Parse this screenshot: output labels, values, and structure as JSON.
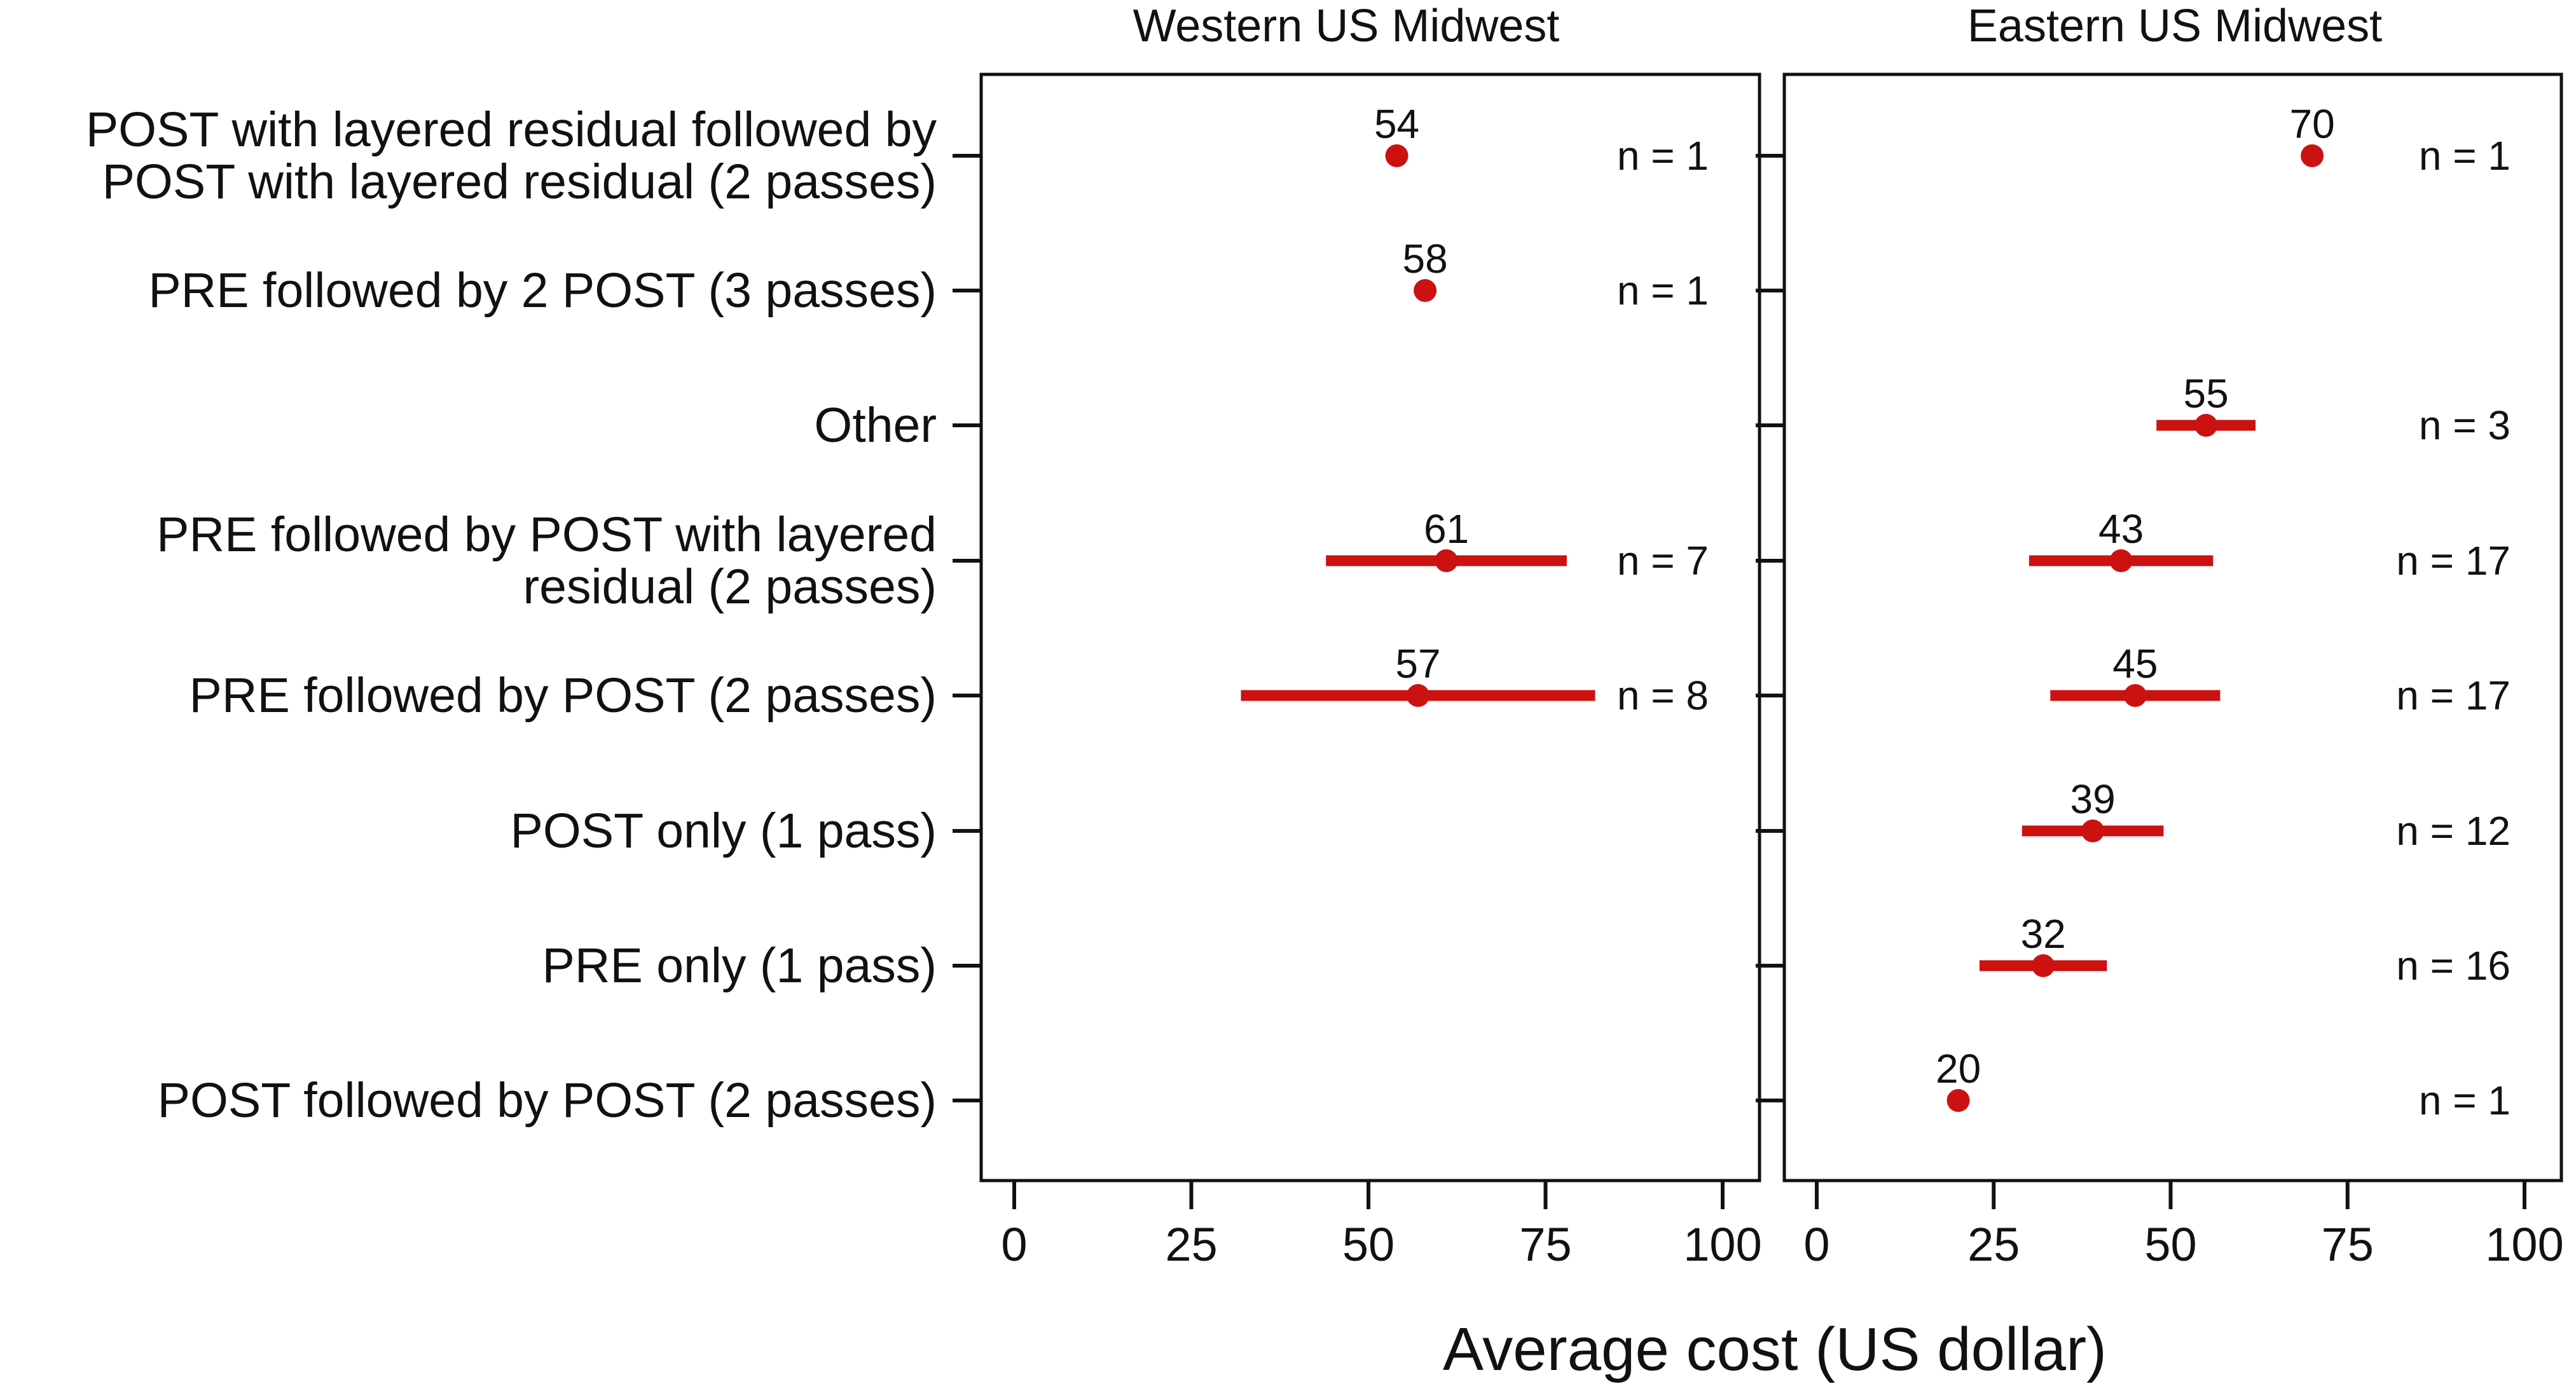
{
  "chart_data": {
    "type": "dot-errorbar",
    "xlabel": "Average cost (US dollar)",
    "xlim": [
      0,
      100
    ],
    "xticks": [
      "0",
      "25",
      "50",
      "75",
      "100"
    ],
    "marker_color": "#cc1111",
    "categories": [
      [
        "POST with layered residual followed by",
        "POST with layered residual (2 passes)"
      ],
      [
        "PRE followed by 2 POST (3 passes)"
      ],
      [
        "Other"
      ],
      [
        "PRE followed by POST with layered",
        "residual (2 passes)"
      ],
      [
        "PRE followed by POST (2 passes)"
      ],
      [
        "POST only (1 pass)"
      ],
      [
        "PRE only (1 pass)"
      ],
      [
        "POST followed by POST (2 passes)"
      ]
    ],
    "panels": [
      {
        "title": "Western US Midwest",
        "points": [
          {
            "category": 0,
            "value": 54,
            "label": "54",
            "low": null,
            "high": null,
            "n": "n = 1"
          },
          {
            "category": 1,
            "value": 58,
            "label": "58",
            "low": null,
            "high": null,
            "n": "n = 1"
          },
          {
            "category": 3,
            "value": 61,
            "label": "61",
            "low": 44,
            "high": 78,
            "n": "n = 7"
          },
          {
            "category": 4,
            "value": 57,
            "label": "57",
            "low": 32,
            "high": 82,
            "n": "n = 8"
          }
        ]
      },
      {
        "title": "Eastern US Midwest",
        "points": [
          {
            "category": 0,
            "value": 70,
            "label": "70",
            "low": null,
            "high": null,
            "n": "n = 1"
          },
          {
            "category": 2,
            "value": 55,
            "label": "55",
            "low": 48,
            "high": 62,
            "n": "n = 3"
          },
          {
            "category": 3,
            "value": 43,
            "label": "43",
            "low": 30,
            "high": 56,
            "n": "n = 17"
          },
          {
            "category": 4,
            "value": 45,
            "label": "45",
            "low": 33,
            "high": 57,
            "n": "n = 17"
          },
          {
            "category": 5,
            "value": 39,
            "label": "39",
            "low": 29,
            "high": 49,
            "n": "n = 12"
          },
          {
            "category": 6,
            "value": 32,
            "label": "32",
            "low": 23,
            "high": 41,
            "n": "n = 16"
          },
          {
            "category": 7,
            "value": 20,
            "label": "20",
            "low": null,
            "high": null,
            "n": "n = 1"
          }
        ]
      }
    ]
  }
}
